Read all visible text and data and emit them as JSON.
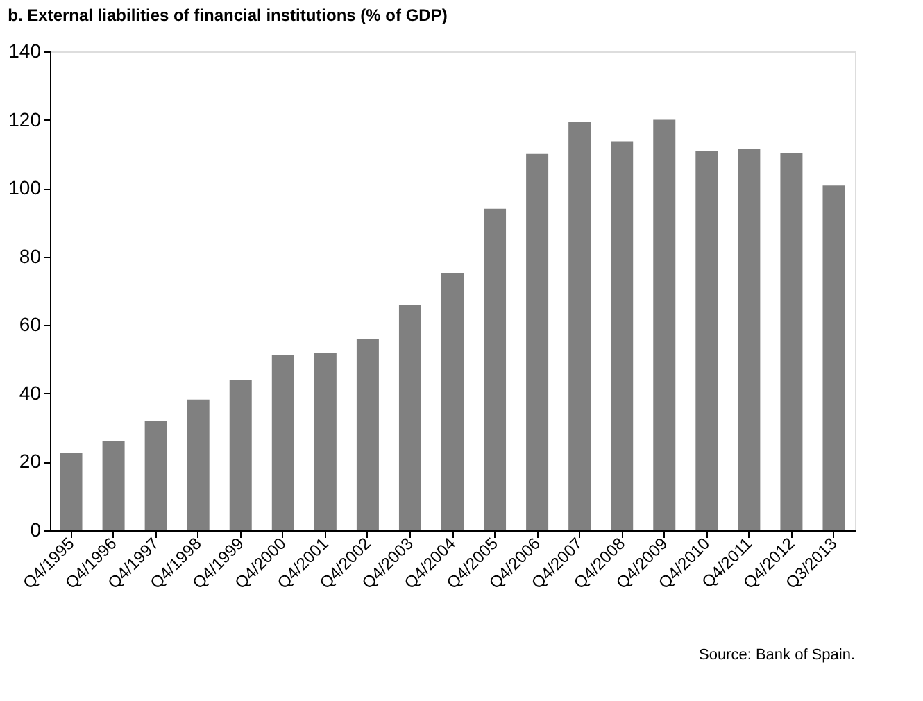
{
  "chart_data": {
    "type": "bar",
    "title": "b. External liabilities of financial institutions (% of GDP)",
    "categories": [
      "Q4/1995",
      "Q4/1996",
      "Q4/1997",
      "Q4/1998",
      "Q4/1999",
      "Q4/2000",
      "Q4/2001",
      "Q4/2002",
      "Q4/2003",
      "Q4/2004",
      "Q4/2005",
      "Q4/2006",
      "Q4/2007",
      "Q4/2008",
      "Q4/2009",
      "Q4/2010",
      "Q4/2011",
      "Q4/2012",
      "Q3/2013"
    ],
    "values": [
      22.5,
      26,
      32,
      38.2,
      44,
      51.3,
      51.8,
      56,
      65.8,
      75.2,
      94,
      110,
      119.3,
      113.7,
      120,
      110.8,
      111.6,
      110.2,
      100.8
    ],
    "color": "#808080",
    "ylim": [
      0,
      140
    ],
    "yticks": [
      0,
      20,
      40,
      60,
      80,
      100,
      120,
      140
    ],
    "grid": false,
    "annotations": [
      "Source: Bank of Spain."
    ]
  }
}
